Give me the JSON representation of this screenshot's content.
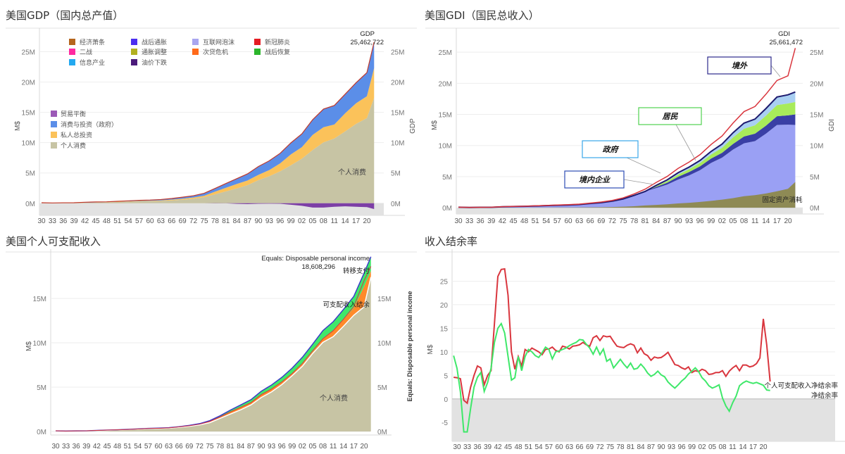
{
  "x_ticks": [
    "30",
    "33",
    "36",
    "39",
    "42",
    "45",
    "48",
    "51",
    "54",
    "57",
    "60",
    "63",
    "66",
    "69",
    "72",
    "75",
    "78",
    "81",
    "84",
    "87",
    "90",
    "93",
    "96",
    "99",
    "02",
    "05",
    "08",
    "11",
    "14",
    "17",
    "20"
  ],
  "colors": {
    "consumption": "#c7c4a4",
    "investment": "#fbc25a",
    "govt": "#5b8ee8",
    "trade": "#7d3fa6",
    "gdi_employee": "#9aa0f4",
    "gdi_govt": "#a8eb5a",
    "gdi_foreign": "#a9cff2",
    "gdi_depr": "#8e8a55",
    "red": "#d9363e",
    "green": "#3fe86a",
    "disp_area": "#c7c4a4"
  },
  "panels": {
    "gdp": {
      "title": "美国GDP（国内总产值）",
      "y_label_left": "M$",
      "y_label_right": "GDP",
      "annot_top": "GDP",
      "annot_value": "25,462,722",
      "area_label": "个人消费",
      "legend_periods": [
        "经济萧条",
        "战后通胀",
        "互联网泡沫",
        "新冠肺炎",
        "二战",
        "通胀调整",
        "次贷危机",
        "战后恢复",
        "信息产业",
        "油价下跌"
      ],
      "legend_period_colors": [
        "#b5651d",
        "#4b2ef0",
        "#a9a6f0",
        "#e51c23",
        "#ff2aa0",
        "#b2b021",
        "#ff6a1a",
        "#2bb52b",
        "#23a9f0",
        "#4b1a7a"
      ],
      "legend_components": [
        "贸易平衡",
        "消费与投资（政府）",
        "私人总投资",
        "个人消费"
      ],
      "legend_component_colors": [
        "#9b59b6",
        "#5b8ee8",
        "#fbc25a",
        "#c7c4a4"
      ]
    },
    "gdi": {
      "title": "美国GDI（国民总收入）",
      "y_label_left": "M$",
      "y_label_right": "GDI",
      "annot_top": "GDI",
      "annot_value": "25,661,472",
      "labels": [
        "境外",
        "居民",
        "政府",
        "境内企业",
        "固定资产消耗"
      ]
    },
    "disp": {
      "title": "美国个人可支配收入",
      "y_label_left": "M$",
      "y_label_right": "Equals: Disposable personal income",
      "annot_top": "Equals: Disposable personal income",
      "annot_value": "18,608,296",
      "labels": [
        "转移支付",
        "可支配收入结余",
        "个人消费"
      ]
    },
    "save": {
      "title": "收入结余率",
      "y_label_left": "M$",
      "labels": [
        "个人可支配收入净结余率",
        "净结余率"
      ]
    }
  },
  "chart_data": [
    {
      "type": "area",
      "title": "美国GDP（国内总产值）",
      "ylabel": "M$",
      "ylim": [
        -2000000,
        27500000
      ],
      "y_ticks": [
        0,
        5000000,
        10000000,
        15000000,
        20000000,
        25000000
      ],
      "y_tick_labels": [
        "0M",
        "5M",
        "10M",
        "15M",
        "20M",
        "25M"
      ],
      "x": [
        1930,
        1933,
        1936,
        1939,
        1942,
        1945,
        1948,
        1951,
        1954,
        1957,
        1960,
        1963,
        1966,
        1969,
        1972,
        1975,
        1978,
        1981,
        1984,
        1987,
        1990,
        1993,
        1996,
        1999,
        2002,
        2005,
        2008,
        2011,
        2014,
        2017,
        2020,
        2022
      ],
      "series": [
        {
          "name": "个人消费",
          "values": [
            70000,
            46000,
            62000,
            67000,
            89000,
            120000,
            174000,
            208000,
            256000,
            308000,
            331000,
            375000,
            466000,
            584000,
            737000,
            1001000,
            1481000,
            1966000,
            2445000,
            2994000,
            3825000,
            4460000,
            5280000,
            6280000,
            7350000,
            8790000,
            10050000,
            10690000,
            11860000,
            13100000,
            14050000,
            17400000
          ]
        },
        {
          "name": "私人总投资",
          "values": [
            11000,
            2000,
            9000,
            9000,
            10000,
            10000,
            36000,
            54000,
            53000,
            70000,
            79000,
            92000,
            126000,
            158000,
            206000,
            235000,
            438000,
            586000,
            736000,
            776000,
            870000,
            1020000,
            1300000,
            1800000,
            1900000,
            2500000,
            2500000,
            2300000,
            3000000,
            3400000,
            3600000,
            4900000
          ]
        },
        {
          "name": "消费与投资（政府）",
          "values": [
            9000,
            9000,
            13000,
            15000,
            70000,
            93000,
            33000,
            62000,
            95000,
            111000,
            122000,
            156000,
            199000,
            262000,
            304000,
            415000,
            535000,
            715000,
            880000,
            1090000,
            1380000,
            1530000,
            1660000,
            1900000,
            2200000,
            2500000,
            3000000,
            3150000,
            3150000,
            3380000,
            3900000,
            4300000
          ]
        },
        {
          "name": "贸易平衡",
          "values": [
            1000,
            0,
            0,
            1000,
            -3000,
            -2000,
            5000,
            2000,
            0,
            4000,
            5000,
            6000,
            4000,
            1000,
            -3000,
            16000,
            -25000,
            -13000,
            -102000,
            -140000,
            -80000,
            -70000,
            -90000,
            -250000,
            -420000,
            -710000,
            -710000,
            -580000,
            -510000,
            -580000,
            -630000,
            -950000
          ]
        }
      ]
    },
    {
      "type": "area",
      "title": "美国GDI（国民总收入）",
      "ylabel": "M$",
      "ylim": [
        -1000000,
        27500000
      ],
      "y_ticks": [
        0,
        5000000,
        10000000,
        15000000,
        20000000,
        25000000
      ],
      "y_tick_labels": [
        "0M",
        "5M",
        "10M",
        "15M",
        "20M",
        "25M"
      ],
      "x": [
        1930,
        1933,
        1936,
        1939,
        1942,
        1945,
        1948,
        1951,
        1954,
        1957,
        1960,
        1963,
        1966,
        1969,
        1972,
        1975,
        1978,
        1981,
        1984,
        1987,
        1990,
        1993,
        1996,
        1999,
        2002,
        2005,
        2008,
        2011,
        2014,
        2017,
        2020,
        2022
      ],
      "series": [
        {
          "name": "固定资产消耗",
          "values": [
            8000,
            8000,
            8000,
            9000,
            11000,
            12000,
            21000,
            28000,
            35000,
            44000,
            52000,
            59000,
            71000,
            90000,
            118000,
            172000,
            242000,
            367000,
            458000,
            560000,
            690000,
            800000,
            930000,
            1110000,
            1300000,
            1550000,
            1850000,
            2020000,
            2300000,
            2650000,
            3050000,
            4150000
          ]
        },
        {
          "name": "境内企业",
          "values": [
            85000,
            48000,
            72000,
            80000,
            160000,
            200000,
            230000,
            280000,
            340000,
            400000,
            440000,
            520000,
            680000,
            830000,
            1060000,
            1420000,
            1990000,
            2620000,
            3150000,
            3720000,
            4530000,
            5190000,
            6040000,
            7200000,
            8050000,
            9350000,
            10350000,
            10700000,
            11900000,
            13300000,
            13350000,
            13300000
          ]
        },
        {
          "name": "政府",
          "values": [
            0,
            0,
            0,
            0,
            0,
            0,
            0,
            0,
            0,
            0,
            0,
            0,
            0,
            0,
            0,
            0,
            0,
            0,
            200000,
            300000,
            450000,
            550000,
            620000,
            700000,
            780000,
            900000,
            1100000,
            1200000,
            1300000,
            1400000,
            1500000,
            1700000
          ]
        },
        {
          "name": "居民",
          "values": [
            0,
            0,
            0,
            0,
            0,
            0,
            0,
            0,
            0,
            0,
            0,
            0,
            0,
            0,
            0,
            0,
            0,
            0,
            150000,
            250000,
            350000,
            450000,
            550000,
            650000,
            800000,
            1050000,
            1250000,
            1350000,
            1600000,
            1800000,
            1900000,
            2000000
          ]
        },
        {
          "name": "境外",
          "values": [
            0,
            0,
            0,
            0,
            0,
            0,
            0,
            0,
            0,
            0,
            0,
            0,
            0,
            0,
            0,
            0,
            0,
            0,
            100000,
            200000,
            300000,
            350000,
            400000,
            500000,
            600000,
            750000,
            900000,
            1000000,
            1150000,
            1300000,
            1400000,
            1600000
          ]
        }
      ],
      "line": {
        "name": "GDI",
        "values": [
          93000,
          56000,
          80000,
          89000,
          171000,
          212000,
          251000,
          308000,
          375000,
          444000,
          492000,
          579000,
          751000,
          920000,
          1178000,
          1592000,
          2232000,
          2987000,
          4058000,
          5030000,
          6320000,
          7340000,
          8540000,
          10160000,
          11530000,
          13600000,
          15450000,
          16270000,
          18250000,
          20450000,
          21200000,
          25661472
        ]
      }
    },
    {
      "type": "area",
      "title": "美国个人可支配收入",
      "ylabel": "M$",
      "ylim": [
        -400000,
        19600000
      ],
      "y_ticks": [
        0,
        5000000,
        10000000,
        15000000
      ],
      "y_tick_labels": [
        "0M",
        "5M",
        "10M",
        "15M"
      ],
      "x": [
        1930,
        1933,
        1936,
        1939,
        1942,
        1945,
        1948,
        1951,
        1954,
        1957,
        1960,
        1963,
        1966,
        1969,
        1972,
        1975,
        1978,
        1981,
        1984,
        1987,
        1990,
        1993,
        1996,
        1999,
        2002,
        2005,
        2008,
        2011,
        2014,
        2017,
        2020,
        2022
      ],
      "series": [
        {
          "name": "个人消费",
          "values": [
            70000,
            46000,
            62000,
            67000,
            89000,
            120000,
            174000,
            208000,
            256000,
            308000,
            331000,
            375000,
            466000,
            584000,
            737000,
            1001000,
            1481000,
            1966000,
            2445000,
            2994000,
            3825000,
            4460000,
            5280000,
            6280000,
            7350000,
            8790000,
            10050000,
            10690000,
            11860000,
            13100000,
            14050000,
            17400000
          ]
        },
        {
          "name": "可支配收入结余",
          "values": [
            3000,
            -1000,
            3000,
            4000,
            28000,
            31000,
            10000,
            16000,
            18000,
            22000,
            25000,
            30000,
            42000,
            55000,
            75000,
            120000,
            150000,
            230000,
            270000,
            250000,
            290000,
            300000,
            260000,
            200000,
            260000,
            200000,
            350000,
            640000,
            740000,
            850000,
            2300000,
            700000
          ]
        },
        {
          "name": "转移支付",
          "values": [
            2000,
            2000,
            2000,
            3000,
            4000,
            6000,
            10000,
            11000,
            14000,
            18000,
            22000,
            26000,
            32000,
            46000,
            68000,
            102000,
            142000,
            210000,
            280000,
            340000,
            420000,
            480000,
            560000,
            660000,
            760000,
            850000,
            980000,
            1050000,
            1160000,
            1280000,
            1500000,
            1600000
          ]
        }
      ],
      "line": {
        "name": "Equals: Disposable personal income",
        "values": [
          75000,
          46000,
          66000,
          72000,
          117000,
          151000,
          186000,
          227000,
          276000,
          332000,
          358000,
          407000,
          509000,
          641000,
          815000,
          1127000,
          1635000,
          2205000,
          2718000,
          3246000,
          4148000,
          4783000,
          5581000,
          6525000,
          7670000,
          9100000,
          10450000,
          11360000,
          12650000,
          14100000,
          17000000,
          18608296
        ]
      }
    },
    {
      "type": "line",
      "title": "收入结余率",
      "ylabel": "M$",
      "ylim": [
        -9,
        30
      ],
      "y_ticks": [
        -5,
        0,
        5,
        10,
        15,
        20,
        25
      ],
      "x": [
        1929,
        1930,
        1931,
        1932,
        1933,
        1934,
        1935,
        1936,
        1937,
        1938,
        1939,
        1940,
        1941,
        1942,
        1943,
        1944,
        1945,
        1946,
        1947,
        1948,
        1949,
        1950,
        1951,
        1952,
        1953,
        1954,
        1955,
        1956,
        1957,
        1958,
        1959,
        1960,
        1961,
        1962,
        1963,
        1964,
        1965,
        1966,
        1967,
        1968,
        1969,
        1970,
        1971,
        1972,
        1973,
        1974,
        1975,
        1976,
        1977,
        1978,
        1979,
        1980,
        1981,
        1982,
        1983,
        1984,
        1985,
        1986,
        1987,
        1988,
        1989,
        1990,
        1991,
        1992,
        1993,
        1994,
        1995,
        1996,
        1997,
        1998,
        1999,
        2000,
        2001,
        2002,
        2003,
        2004,
        2005,
        2006,
        2007,
        2008,
        2009,
        2010,
        2011,
        2012,
        2013,
        2014,
        2015,
        2016,
        2017,
        2018,
        2019,
        2020,
        2021,
        2022
      ],
      "series": [
        {
          "name": "个人可支配收入净结余率",
          "values": [
            4.6,
            4.5,
            4.3,
            -0.3,
            -0.9,
            2.5,
            5.0,
            7.0,
            6.6,
            3.0,
            5.0,
            6.0,
            16.0,
            26.0,
            27.5,
            27.6,
            22.0,
            10.0,
            6.3,
            9.0,
            7.0,
            10.5,
            10.0,
            10.8,
            10.4,
            10.0,
            9.4,
            10.5,
            10.6,
            11.0,
            10.3,
            10.0,
            11.2,
            11.0,
            10.6,
            11.2,
            11.3,
            11.5,
            12.0,
            11.5,
            11.2,
            13.0,
            13.4,
            12.4,
            13.4,
            13.2,
            13.3,
            12.2,
            11.2,
            11.0,
            10.9,
            11.4,
            11.7,
            11.4,
            9.8,
            10.8,
            9.6,
            9.2,
            8.2,
            8.9,
            8.7,
            8.8,
            9.3,
            9.9,
            8.6,
            7.3,
            7.1,
            6.6,
            6.3,
            6.8,
            5.6,
            6.0,
            5.8,
            6.3,
            6.0,
            5.2,
            5.3,
            5.6,
            5.6,
            6.0,
            4.8,
            5.9,
            6.6,
            7.1,
            6.0,
            7.2,
            7.2,
            6.8,
            7.0,
            7.5,
            8.7,
            17.0,
            11.5,
            3.7
          ]
        },
        {
          "name": "净结余率",
          "values": [
            9.2,
            6.5,
            1.5,
            -7.0,
            -7.0,
            -2.0,
            2.5,
            4.6,
            5.6,
            1.6,
            3.5,
            6.5,
            12.0,
            15.0,
            16.0,
            14.0,
            9.0,
            4.0,
            4.5,
            9.0,
            6.0,
            9.0,
            10.5,
            10.0,
            9.2,
            8.8,
            9.8,
            11.0,
            10.5,
            8.5,
            10.0,
            10.2,
            10.5,
            10.8,
            11.3,
            11.7,
            12.0,
            12.6,
            12.5,
            11.6,
            10.8,
            9.5,
            11.0,
            9.4,
            10.6,
            8.0,
            8.5,
            6.6,
            7.5,
            8.4,
            7.4,
            6.6,
            7.6,
            6.3,
            6.5,
            7.4,
            6.6,
            5.5,
            4.8,
            5.2,
            5.9,
            5.1,
            4.7,
            3.6,
            2.9,
            2.3,
            3.0,
            3.8,
            4.4,
            5.3,
            5.9,
            6.6,
            5.8,
            4.5,
            3.8,
            2.8,
            2.3,
            2.6,
            3.0,
            0.2,
            -1.5,
            -2.6,
            -0.8,
            0.6,
            2.8,
            3.4,
            3.8,
            3.5,
            3.3,
            3.5,
            3.2,
            2.9,
            1.9,
            1.8
          ]
        }
      ]
    }
  ]
}
